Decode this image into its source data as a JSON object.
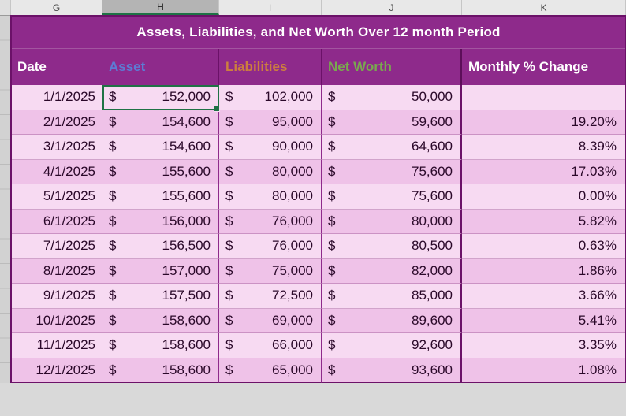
{
  "grid": {
    "column_headers": [
      "G",
      "H",
      "I",
      "J",
      "K"
    ],
    "selected_column": "H"
  },
  "table": {
    "title": "Assets, Liabilities, and Net Worth Over 12 month Period",
    "currency_symbol": "$",
    "columns": [
      {
        "label": "Date",
        "color": "#FFFFFF"
      },
      {
        "label": "Asset",
        "color": "#5D7BD4"
      },
      {
        "label": "Liabilities",
        "color": "#CD7F3E"
      },
      {
        "label": "Net Worth",
        "color": "#79A84F"
      },
      {
        "label": "Monthly % Change",
        "color": "#FFFFFF"
      }
    ],
    "rows": [
      {
        "date": "1/1/2025",
        "asset": "152,000",
        "liabilities": "102,000",
        "net_worth": "50,000",
        "pct_change": ""
      },
      {
        "date": "2/1/2025",
        "asset": "154,600",
        "liabilities": "95,000",
        "net_worth": "59,600",
        "pct_change": "19.20%"
      },
      {
        "date": "3/1/2025",
        "asset": "154,600",
        "liabilities": "90,000",
        "net_worth": "64,600",
        "pct_change": "8.39%"
      },
      {
        "date": "4/1/2025",
        "asset": "155,600",
        "liabilities": "80,000",
        "net_worth": "75,600",
        "pct_change": "17.03%"
      },
      {
        "date": "5/1/2025",
        "asset": "155,600",
        "liabilities": "80,000",
        "net_worth": "75,600",
        "pct_change": "0.00%"
      },
      {
        "date": "6/1/2025",
        "asset": "156,000",
        "liabilities": "76,000",
        "net_worth": "80,000",
        "pct_change": "5.82%"
      },
      {
        "date": "7/1/2025",
        "asset": "156,500",
        "liabilities": "76,000",
        "net_worth": "80,500",
        "pct_change": "0.63%"
      },
      {
        "date": "8/1/2025",
        "asset": "157,000",
        "liabilities": "75,000",
        "net_worth": "82,000",
        "pct_change": "1.86%"
      },
      {
        "date": "9/1/2025",
        "asset": "157,500",
        "liabilities": "72,500",
        "net_worth": "85,000",
        "pct_change": "3.66%"
      },
      {
        "date": "10/1/2025",
        "asset": "158,600",
        "liabilities": "69,000",
        "net_worth": "89,600",
        "pct_change": "5.41%"
      },
      {
        "date": "11/1/2025",
        "asset": "158,600",
        "liabilities": "66,000",
        "net_worth": "92,600",
        "pct_change": "3.35%"
      },
      {
        "date": "12/1/2025",
        "asset": "158,600",
        "liabilities": "65,000",
        "net_worth": "93,600",
        "pct_change": "1.08%"
      }
    ]
  },
  "selection": {
    "row_index": 0,
    "column_index": 1
  },
  "colors": {
    "title_bg": "#8E2A8B",
    "header_bg": "#8E2A8B",
    "band_light": "#F7DAF2",
    "band_dark": "#EFC2E8",
    "table_border": "#6B1168",
    "selection_border": "#1F7245"
  }
}
